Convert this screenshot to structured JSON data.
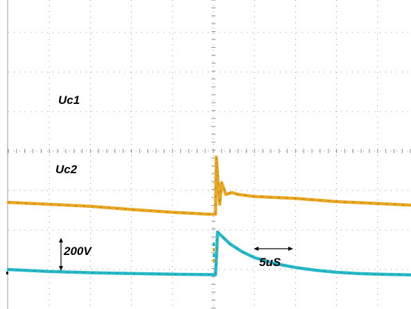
{
  "chart_data": {
    "type": "line",
    "title": "",
    "xlabel": "",
    "ylabel": "",
    "x_divisions": 10,
    "y_divisions": 8,
    "grid": true,
    "scale": {
      "voltage_label": "200V",
      "time_label": "5uS",
      "volts_per_div": 200,
      "us_per_div": 5
    },
    "series": [
      {
        "name": "Uc1",
        "color": "#E8A317",
        "label_color": "#000000",
        "x_div": [
          0.0,
          1.0,
          2.0,
          3.0,
          4.0,
          4.9,
          5.05,
          5.07,
          5.1,
          5.15,
          5.2,
          5.3,
          5.45,
          5.6,
          6.0,
          7.0,
          8.0,
          9.0,
          10.0
        ],
        "y_div": [
          -1.3,
          -1.35,
          -1.4,
          -1.48,
          -1.55,
          -1.6,
          -1.6,
          -0.15,
          -0.6,
          -1.35,
          -0.8,
          -1.1,
          -1.05,
          -1.1,
          -1.15,
          -1.2,
          -1.28,
          -1.33,
          -1.38
        ]
      },
      {
        "name": "Uc2",
        "color": "#1BB5C4",
        "label_color": "#000000",
        "x_div": [
          0.0,
          1.0,
          2.0,
          3.0,
          4.0,
          4.9,
          5.05,
          5.07,
          5.1,
          5.2,
          5.4,
          5.7,
          6.0,
          6.5,
          7.0,
          7.5,
          8.0,
          8.5,
          9.0,
          9.5,
          10.0
        ],
        "y_div": [
          -3.0,
          -3.05,
          -3.08,
          -3.1,
          -3.12,
          -3.13,
          -3.13,
          -2.75,
          -2.05,
          -2.15,
          -2.35,
          -2.55,
          -2.7,
          -2.85,
          -2.95,
          -3.02,
          -3.07,
          -3.1,
          -3.12,
          -3.13,
          -3.14
        ]
      }
    ]
  }
}
